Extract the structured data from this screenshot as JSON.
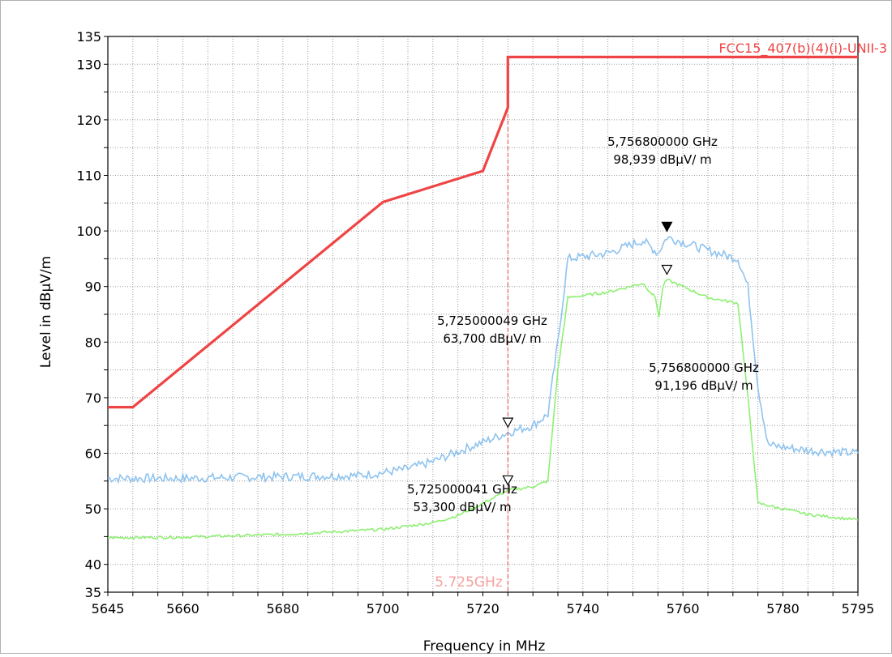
{
  "chart_data": {
    "type": "line",
    "title": "",
    "xlabel": "Frequency in MHz",
    "ylabel": "Level in dBµV/m",
    "xlim": [
      5645,
      5795
    ],
    "ylim": [
      35,
      135
    ],
    "x_ticks": [
      5645,
      5660,
      5680,
      5700,
      5720,
      5740,
      5760,
      5780,
      5795
    ],
    "y_ticks": [
      35,
      40,
      50,
      60,
      70,
      80,
      90,
      100,
      110,
      120,
      130,
      135
    ],
    "grid": true,
    "limit_line": {
      "name": "FCC15_407(b)(4)(i)-UNII-3",
      "color": "#ef4444",
      "points": [
        [
          5645,
          68.3
        ],
        [
          5650,
          68.3
        ],
        [
          5700,
          105.2
        ],
        [
          5720,
          110.8
        ],
        [
          5725,
          122.2
        ],
        [
          5725,
          131.3
        ],
        [
          5795,
          131.3
        ]
      ]
    },
    "band_edge": {
      "x": 5725,
      "label": "5.725GHz",
      "color": "#ef4444"
    },
    "series": [
      {
        "color": "#8ec3ef",
        "points": [
          [
            5645,
            55.5
          ],
          [
            5660,
            55.5
          ],
          [
            5680,
            55.8
          ],
          [
            5695,
            56.0
          ],
          [
            5700,
            56.5
          ],
          [
            5705,
            57.2
          ],
          [
            5710,
            58.5
          ],
          [
            5715,
            60.3
          ],
          [
            5720,
            62.0
          ],
          [
            5725,
            63.7
          ],
          [
            5730,
            65.0
          ],
          [
            5733,
            67.0
          ],
          [
            5735,
            80.0
          ],
          [
            5737,
            95.0
          ],
          [
            5745,
            96.0
          ],
          [
            5752,
            98.3
          ],
          [
            5755,
            96.0
          ],
          [
            5756.8,
            98.9
          ],
          [
            5760,
            98.0
          ],
          [
            5765,
            96.5
          ],
          [
            5771,
            95.0
          ],
          [
            5773,
            90.0
          ],
          [
            5775,
            72.0
          ],
          [
            5777,
            61.5
          ],
          [
            5785,
            60.5
          ],
          [
            5795,
            60.0
          ]
        ]
      },
      {
        "color": "#8ef072",
        "points": [
          [
            5645,
            44.8
          ],
          [
            5660,
            44.9
          ],
          [
            5680,
            45.4
          ],
          [
            5700,
            46.3
          ],
          [
            5710,
            47.5
          ],
          [
            5715,
            48.8
          ],
          [
            5720,
            51.0
          ],
          [
            5725,
            53.3
          ],
          [
            5730,
            54.0
          ],
          [
            5733,
            55.0
          ],
          [
            5735,
            75.0
          ],
          [
            5737,
            88.0
          ],
          [
            5745,
            89.0
          ],
          [
            5752,
            90.6
          ],
          [
            5754.5,
            88.0
          ],
          [
            5755.2,
            84.5
          ],
          [
            5756,
            90.0
          ],
          [
            5756.8,
            91.2
          ],
          [
            5760,
            90.0
          ],
          [
            5765,
            88.0
          ],
          [
            5771,
            87.0
          ],
          [
            5773,
            70.0
          ],
          [
            5775,
            51.0
          ],
          [
            5780,
            50.0
          ],
          [
            5785,
            49.0
          ],
          [
            5795,
            48.0
          ]
        ]
      }
    ],
    "markers": [
      {
        "x": 5756.8,
        "y": 98.939,
        "filled": true,
        "freq_label": "5,756800000 GHz",
        "level_label": "98,939 dBµV/ m"
      },
      {
        "x": 5756.8,
        "y": 91.196,
        "filled": false,
        "freq_label": "5,756800000 GHz",
        "level_label": "91,196 dBµV/ m"
      },
      {
        "x": 5725.000049,
        "y": 63.7,
        "filled": false,
        "freq_label": "5,725000049 GHz",
        "level_label": "63,700 dBµV/ m"
      },
      {
        "x": 5725.000041,
        "y": 53.3,
        "filled": false,
        "freq_label": "5,725000041 GHz",
        "level_label": "53,300 dBµV/ m"
      }
    ]
  }
}
